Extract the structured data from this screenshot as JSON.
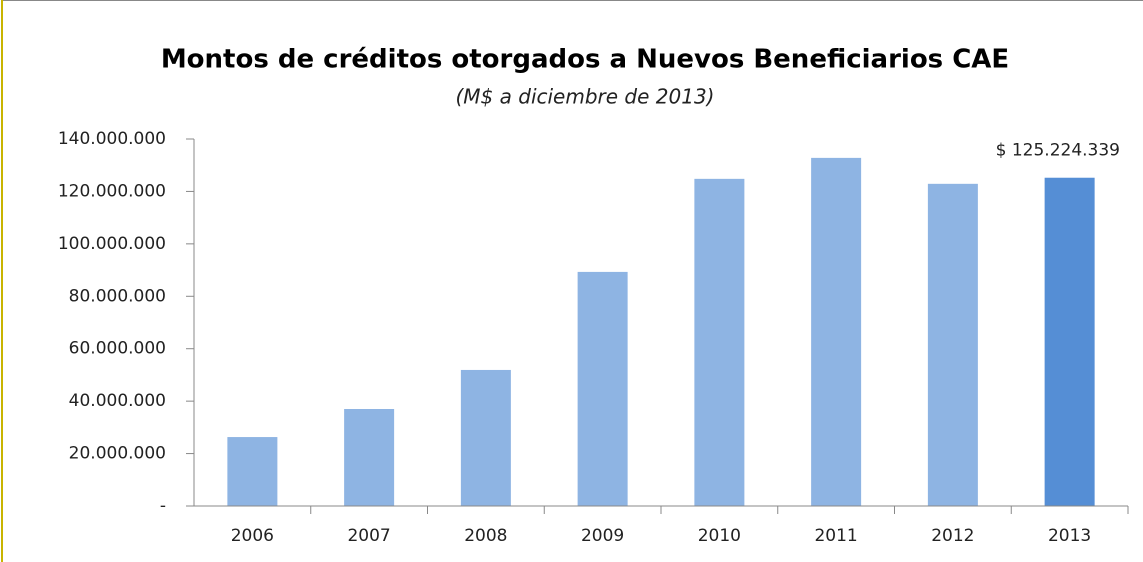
{
  "chart_data": {
    "type": "bar",
    "title": "Montos de créditos otorgados a Nuevos Beneficiarios CAE",
    "subtitle": "(M$ a diciembre de 2013)",
    "categories": [
      "2006",
      "2007",
      "2008",
      "2009",
      "2010",
      "2011",
      "2012",
      "2013"
    ],
    "values": [
      26300000,
      37000000,
      51900000,
      89300000,
      124800000,
      132800000,
      122900000,
      125224339
    ],
    "value_labels": [
      null,
      null,
      null,
      null,
      null,
      null,
      null,
      "$ 125.224.339"
    ],
    "colors": [
      "#8eb4e3",
      "#8eb4e3",
      "#8eb4e3",
      "#8eb4e3",
      "#8eb4e3",
      "#8eb4e3",
      "#8eb4e3",
      "#558ed5"
    ],
    "ylim": [
      0,
      140000000
    ],
    "yticks": [
      {
        "value": 0,
        "label": "-"
      },
      {
        "value": 20000000,
        "label": "20.000.000"
      },
      {
        "value": 40000000,
        "label": "40.000.000"
      },
      {
        "value": 60000000,
        "label": "60.000.000"
      },
      {
        "value": 80000000,
        "label": "80.000.000"
      },
      {
        "value": 100000000,
        "label": "100.000.000"
      },
      {
        "value": 120000000,
        "label": "120.000.000"
      },
      {
        "value": 140000000,
        "label": "140.000.000"
      }
    ],
    "grid": false
  }
}
